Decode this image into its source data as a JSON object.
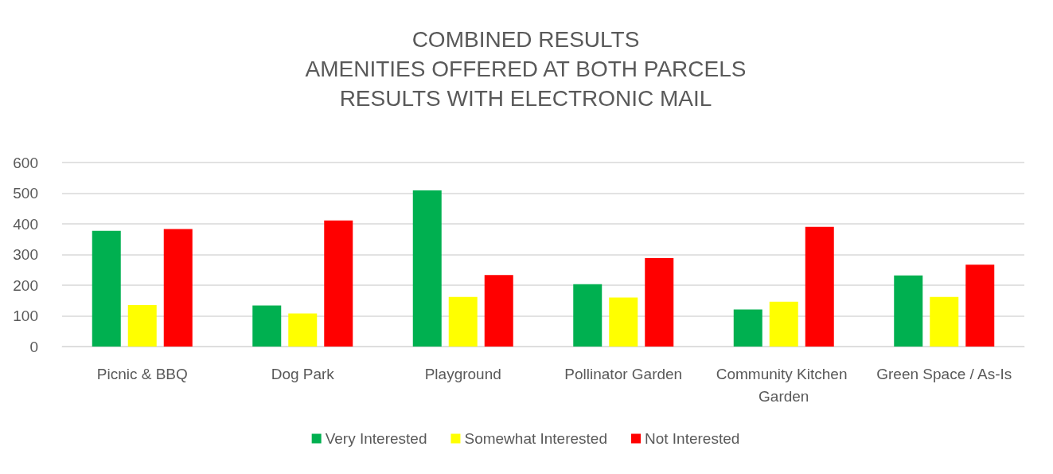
{
  "chart_data": {
    "type": "bar",
    "title": "COMBINED RESULTS\nAMENITIES OFFERED AT BOTH PARCELS\nRESULTS WITH ELECTRONIC MAIL",
    "categories": [
      "Picnic & BBQ",
      "Dog Park",
      "Playground",
      "Pollinator Garden",
      "Community Kitchen Garden",
      "Green Space / As-Is"
    ],
    "series": [
      {
        "name": "Very Interested",
        "color": "#00b050",
        "values": [
          377,
          134,
          509,
          203,
          121,
          232
        ]
      },
      {
        "name": "Somewhat Interested",
        "color": "#ffff00",
        "values": [
          135,
          108,
          162,
          160,
          146,
          162
        ]
      },
      {
        "name": "Not Interested",
        "color": "#ff0000",
        "values": [
          383,
          411,
          233,
          288,
          390,
          267
        ]
      }
    ],
    "ylim": [
      0,
      600
    ],
    "yticks": [
      0,
      100,
      200,
      300,
      400,
      500,
      600
    ],
    "grid": "y",
    "legend": "bottom"
  }
}
